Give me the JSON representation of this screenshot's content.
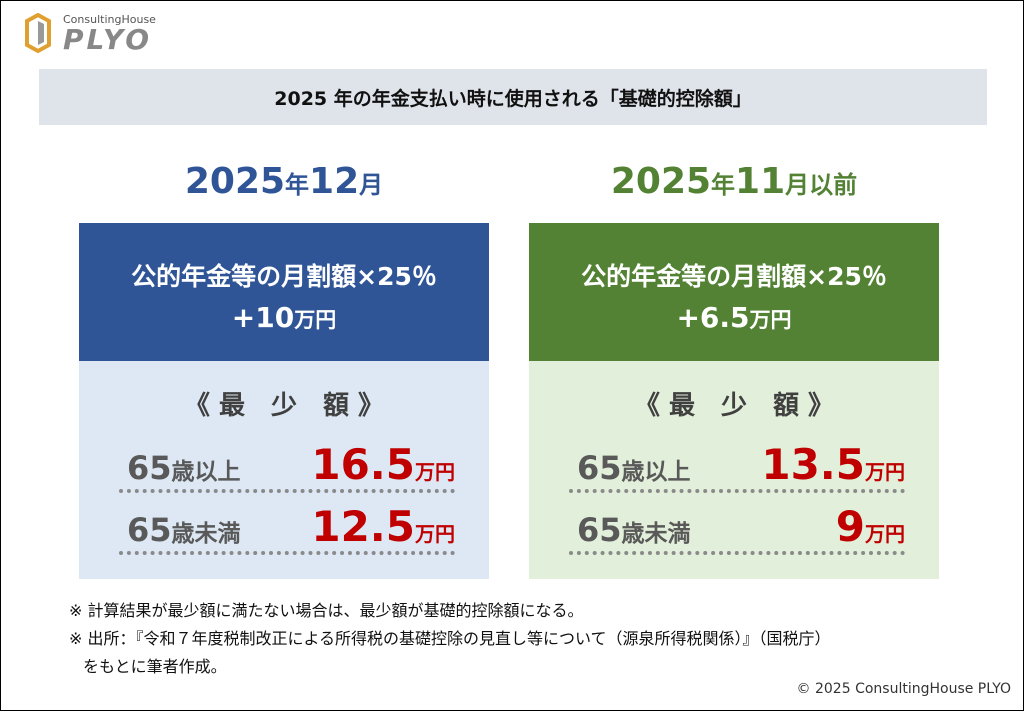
{
  "logo": {
    "small": "ConsultingHouse",
    "main": "PLYO"
  },
  "title": "2025 年の年金支払い時に使用される「基礎的控除額」",
  "panels": [
    {
      "heading": [
        "2025",
        "年",
        "12",
        "月"
      ],
      "formula_line1": "公的年金等の月割額×25％",
      "formula_line2": [
        "+10",
        "万円"
      ],
      "min_label": "《 最　少　額 》",
      "rows": [
        {
          "age": "65",
          "label": "歳以上",
          "amount": "16.5",
          "unit": "万円"
        },
        {
          "age": "65",
          "label": "歳未満",
          "amount": "12.5",
          "unit": "万円"
        }
      ]
    },
    {
      "heading": [
        "2025",
        "年",
        "11",
        "月以前"
      ],
      "formula_line1": "公的年金等の月割額×25％",
      "formula_line2": [
        "+6.5",
        "万円"
      ],
      "min_label": "《 最　少　額 》",
      "rows": [
        {
          "age": "65",
          "label": "歳以上",
          "amount": "13.5",
          "unit": "万円"
        },
        {
          "age": "65",
          "label": "歳未満",
          "amount": "9",
          "unit": "万円"
        }
      ]
    }
  ],
  "notes": [
    [
      "※ 計算結果が最少額に満たない場合は、最少額が基礎的控除額になる。"
    ],
    [
      "※ 出所：『令和７年度税制改正による所得税の基礎控除の見直し等について（源泉所得税関係）』（国税庁）",
      "をもとに筆者作成。"
    ]
  ],
  "footer": "© 2025 ConsultingHouse PLYO"
}
